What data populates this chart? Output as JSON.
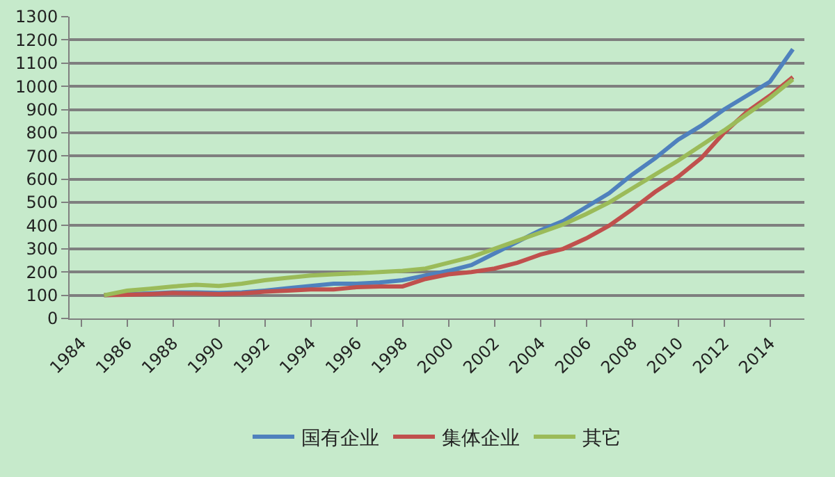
{
  "chart_data": {
    "type": "line",
    "categories": [
      "1984",
      null,
      "1986",
      null,
      "1988",
      null,
      "1990",
      null,
      "1992",
      null,
      "1994",
      null,
      "1996",
      null,
      "1998",
      null,
      "2000",
      null,
      "2002",
      null,
      "2004",
      null,
      "2006",
      null,
      "2008",
      null,
      "2010",
      null,
      "2012",
      null,
      "2014",
      null
    ],
    "series": [
      {
        "name": "国有企业",
        "color": "#4f81bd",
        "values": [
          null,
          100,
          105,
          108,
          112,
          112,
          110,
          112,
          120,
          130,
          140,
          150,
          150,
          155,
          165,
          185,
          205,
          230,
          280,
          330,
          380,
          420,
          480,
          540,
          620,
          690,
          770,
          830,
          900,
          960,
          1020,
          1160
        ]
      },
      {
        "name": "集体企业",
        "color": "#c0504d",
        "values": [
          null,
          100,
          102,
          105,
          110,
          108,
          105,
          108,
          115,
          120,
          125,
          125,
          135,
          138,
          138,
          170,
          190,
          200,
          215,
          240,
          275,
          300,
          345,
          400,
          470,
          545,
          610,
          690,
          800,
          890,
          960,
          1040
        ]
      },
      {
        "name": "其它",
        "color": "#9bbb59",
        "values": [
          null,
          100,
          120,
          128,
          138,
          145,
          140,
          150,
          165,
          175,
          185,
          190,
          195,
          200,
          205,
          215,
          240,
          265,
          300,
          335,
          370,
          405,
          450,
          500,
          560,
          620,
          680,
          745,
          810,
          880,
          950,
          1030
        ]
      }
    ],
    "ylim": [
      0,
      1300
    ],
    "yticks": [
      0,
      100,
      200,
      300,
      400,
      500,
      600,
      700,
      800,
      900,
      1000,
      1100,
      1200,
      1300
    ],
    "grid": "y",
    "legend": "bottom",
    "marker": "none",
    "line_style": "solid"
  }
}
